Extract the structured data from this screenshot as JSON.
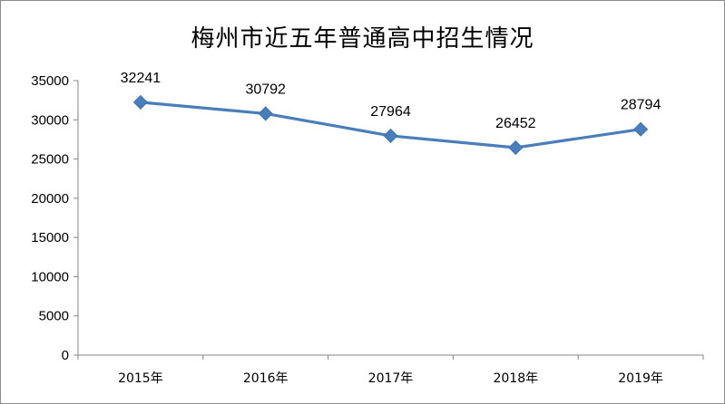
{
  "chart_data": {
    "type": "line",
    "title": "梅州市近五年普通高中招生情况",
    "categories": [
      "2015年",
      "2016年",
      "2017年",
      "2018年",
      "2019年"
    ],
    "values": [
      32241,
      30792,
      27964,
      26452,
      28794
    ],
    "data_labels": [
      "32241",
      "30792",
      "27964",
      "26452",
      "28794"
    ],
    "ylim": [
      0,
      35000
    ],
    "y_ticks": [
      "0",
      "5000",
      "10000",
      "15000",
      "20000",
      "25000",
      "30000",
      "35000"
    ],
    "xlabel": "",
    "ylabel": "",
    "grid": false,
    "legend": "none",
    "marker": "diamond",
    "color": "#4a7ebb"
  }
}
